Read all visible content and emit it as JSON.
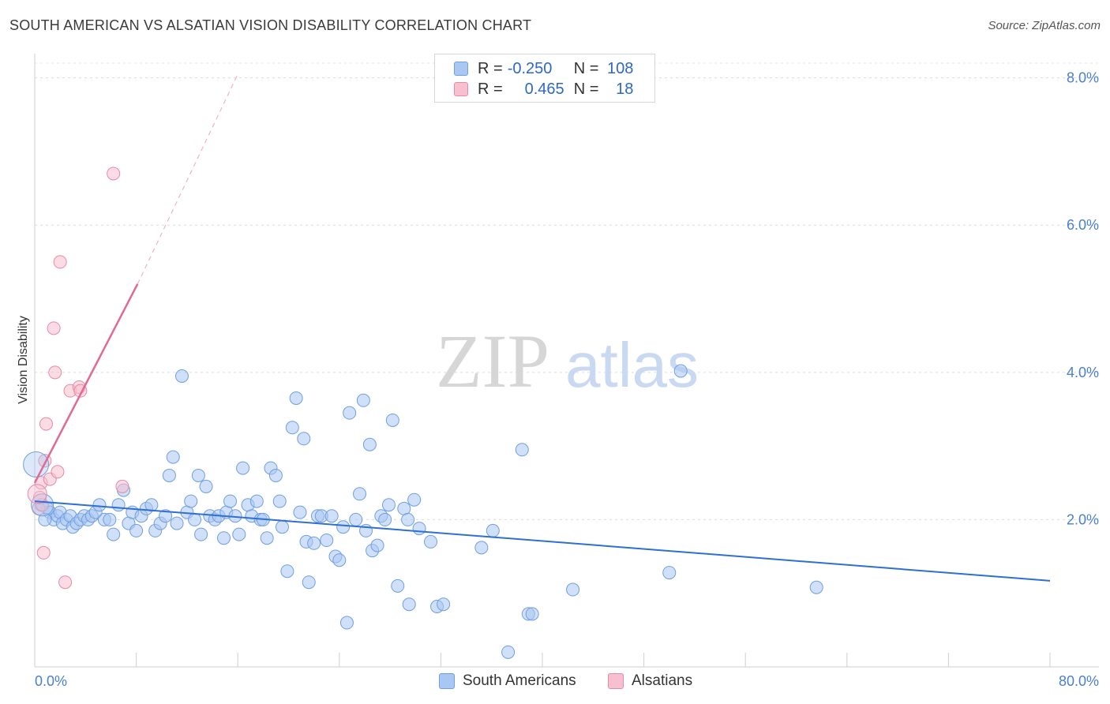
{
  "header": {
    "title": "SOUTH AMERICAN VS ALSATIAN VISION DISABILITY CORRELATION CHART",
    "source": "Source: ZipAtlas.com"
  },
  "watermark": {
    "zip": "ZIP",
    "atlas": "atlas"
  },
  "legend": {
    "rows": [
      {
        "r_label": "R = ",
        "r_value": "-0.250",
        "n_label": "N = ",
        "n_value": "108",
        "color": "#a9c7f2",
        "border": "#6f9fe0"
      },
      {
        "r_label": "R = ",
        "r_value": "0.465",
        "n_label": "N = ",
        "n_value": "18",
        "color": "#f7bfd0",
        "border": "#e58aa6"
      }
    ]
  },
  "bottom_legend": {
    "items": [
      {
        "label": "South Americans",
        "color": "#a9c7f2",
        "border": "#6f9fe0"
      },
      {
        "label": "Alsatians",
        "color": "#f7bfd0",
        "border": "#e58aa6"
      }
    ]
  },
  "chart_data": {
    "type": "scatter",
    "title": "SOUTH AMERICAN VS ALSATIAN VISION DISABILITY CORRELATION CHART",
    "xlabel": "",
    "ylabel": "Vision Disability",
    "xlim": [
      0,
      80
    ],
    "ylim": [
      0,
      8.2
    ],
    "x_tick_labels": [
      "0.0%",
      "80.0%"
    ],
    "y_ticks": [
      2,
      4,
      6,
      8
    ],
    "y_tick_labels": [
      "2.0%",
      "4.0%",
      "6.0%",
      "8.0%"
    ],
    "grid": true,
    "series": [
      {
        "name": "South Americans",
        "color": "#a9c7f2",
        "stroke": "#6f9fe0",
        "trend": {
          "x0": 0,
          "y0": 2.25,
          "x1": 80,
          "y1": 1.17,
          "color": "#2f6fd1"
        },
        "points": [
          [
            0.5,
            2.2
          ],
          [
            1.0,
            2.15
          ],
          [
            1.2,
            2.1
          ],
          [
            1.5,
            2.0
          ],
          [
            1.8,
            2.05
          ],
          [
            2.0,
            2.1
          ],
          [
            2.2,
            1.95
          ],
          [
            2.5,
            2.0
          ],
          [
            2.8,
            2.05
          ],
          [
            3.0,
            1.9
          ],
          [
            3.3,
            1.95
          ],
          [
            3.6,
            2.0
          ],
          [
            3.9,
            2.05
          ],
          [
            4.2,
            2.0
          ],
          [
            4.5,
            2.05
          ],
          [
            4.8,
            2.1
          ],
          [
            5.1,
            2.2
          ],
          [
            5.5,
            2.0
          ],
          [
            5.9,
            2.0
          ],
          [
            6.2,
            1.8
          ],
          [
            6.6,
            2.2
          ],
          [
            7.0,
            2.4
          ],
          [
            7.4,
            1.95
          ],
          [
            7.7,
            2.1
          ],
          [
            8.0,
            1.85
          ],
          [
            8.4,
            2.05
          ],
          [
            8.8,
            2.15
          ],
          [
            9.2,
            2.2
          ],
          [
            9.5,
            1.85
          ],
          [
            9.9,
            1.95
          ],
          [
            10.3,
            2.05
          ],
          [
            10.6,
            2.6
          ],
          [
            10.9,
            2.85
          ],
          [
            11.2,
            1.95
          ],
          [
            11.6,
            3.95
          ],
          [
            12.0,
            2.1
          ],
          [
            12.3,
            2.25
          ],
          [
            12.6,
            2.0
          ],
          [
            12.9,
            2.6
          ],
          [
            13.1,
            1.8
          ],
          [
            13.5,
            2.45
          ],
          [
            13.8,
            2.05
          ],
          [
            14.2,
            2.0
          ],
          [
            14.5,
            2.05
          ],
          [
            14.9,
            1.75
          ],
          [
            15.1,
            2.1
          ],
          [
            15.4,
            2.25
          ],
          [
            15.8,
            2.05
          ],
          [
            16.1,
            1.8
          ],
          [
            16.4,
            2.7
          ],
          [
            16.8,
            2.2
          ],
          [
            17.1,
            2.05
          ],
          [
            17.5,
            2.25
          ],
          [
            17.8,
            2.0
          ],
          [
            18.0,
            2.0
          ],
          [
            18.3,
            1.75
          ],
          [
            18.6,
            2.7
          ],
          [
            19.0,
            2.6
          ],
          [
            19.3,
            2.25
          ],
          [
            19.5,
            1.9
          ],
          [
            19.9,
            1.3
          ],
          [
            20.3,
            3.25
          ],
          [
            20.6,
            3.65
          ],
          [
            20.9,
            2.1
          ],
          [
            21.2,
            3.1
          ],
          [
            21.4,
            1.7
          ],
          [
            21.6,
            1.15
          ],
          [
            22.0,
            1.68
          ],
          [
            22.3,
            2.05
          ],
          [
            22.6,
            2.05
          ],
          [
            23.0,
            1.72
          ],
          [
            23.4,
            2.05
          ],
          [
            23.7,
            1.5
          ],
          [
            24.0,
            1.45
          ],
          [
            24.3,
            1.9
          ],
          [
            24.6,
            0.6
          ],
          [
            24.8,
            3.45
          ],
          [
            25.3,
            2.0
          ],
          [
            25.6,
            2.35
          ],
          [
            25.9,
            3.62
          ],
          [
            26.1,
            1.85
          ],
          [
            26.4,
            3.02
          ],
          [
            26.6,
            1.58
          ],
          [
            27.0,
            1.65
          ],
          [
            27.3,
            2.05
          ],
          [
            27.6,
            2.0
          ],
          [
            27.9,
            2.2
          ],
          [
            28.2,
            3.35
          ],
          [
            28.6,
            1.1
          ],
          [
            29.1,
            2.15
          ],
          [
            29.4,
            2.0
          ],
          [
            29.5,
            0.85
          ],
          [
            29.9,
            2.27
          ],
          [
            30.3,
            1.88
          ],
          [
            31.2,
            1.7
          ],
          [
            31.7,
            0.82
          ],
          [
            32.2,
            0.85
          ],
          [
            35.2,
            1.62
          ],
          [
            36.1,
            1.85
          ],
          [
            37.3,
            0.2
          ],
          [
            38.4,
            2.95
          ],
          [
            38.9,
            0.72
          ],
          [
            39.2,
            0.72
          ],
          [
            42.4,
            1.05
          ],
          [
            50.0,
            1.28
          ],
          [
            50.9,
            4.02
          ],
          [
            61.6,
            1.08
          ],
          [
            0.8,
            2.0
          ]
        ]
      },
      {
        "name": "Alsatians",
        "color": "#f7bfd0",
        "stroke": "#e58aa6",
        "trend": {
          "x0": 0,
          "y0": 2.5,
          "x1": 8.1,
          "y1": 5.2,
          "dash_x1": 16.0,
          "dash_y1": 8.05,
          "color": "#e06a93"
        },
        "points": [
          [
            0.3,
            2.15
          ],
          [
            0.5,
            2.5
          ],
          [
            0.7,
            1.55
          ],
          [
            0.8,
            2.8
          ],
          [
            0.9,
            3.3
          ],
          [
            1.2,
            2.55
          ],
          [
            1.5,
            4.6
          ],
          [
            1.6,
            4.0
          ],
          [
            1.8,
            2.65
          ],
          [
            2.0,
            5.5
          ],
          [
            2.4,
            1.15
          ],
          [
            2.8,
            3.75
          ],
          [
            3.5,
            3.8
          ],
          [
            3.6,
            3.75
          ],
          [
            6.2,
            6.7
          ],
          [
            6.9,
            2.45
          ],
          [
            0.6,
            2.2
          ],
          [
            0.4,
            2.3
          ]
        ]
      }
    ]
  }
}
